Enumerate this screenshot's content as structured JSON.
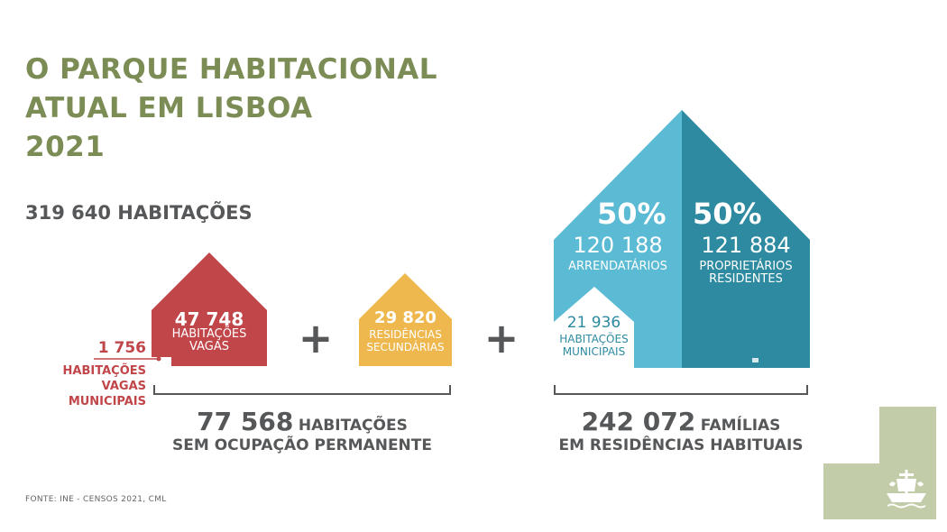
{
  "title": {
    "line1": "O PARQUE HABITACIONAL",
    "line2": "ATUAL EM LISBOA",
    "line3": "2021"
  },
  "total": "319 640 HABITAÇÕES",
  "vacant": {
    "value": "47 748",
    "label1": "HABITAÇÕES",
    "label2": "VAGAS",
    "color": "#c0464a"
  },
  "vacant_municipal": {
    "value": "1 756",
    "label1": "HABITAÇÕES",
    "label2": "VAGAS",
    "label3": "MUNICIPAIS"
  },
  "secondary": {
    "value": "29 820",
    "label1": "RESIDÊNCIAS",
    "label2": "SECUNDÁRIAS",
    "color": "#eeb84e"
  },
  "plus_sign": "+",
  "unoccupied_total": {
    "value": "77 568",
    "unit": "HABITAÇÕES",
    "line2": "SEM OCUPAÇÃO PERMANENTE"
  },
  "tenants": {
    "percent": "50%",
    "value": "120 188",
    "label": "ARRENDATÁRIOS",
    "color": "#5bbad4"
  },
  "owners": {
    "percent": "50%",
    "value": "121 884",
    "label1": "PROPRIETÁRIOS",
    "label2": "RESIDENTES",
    "color": "#2d8aa0"
  },
  "municipal": {
    "value": "21 936",
    "label1": "HABITAÇÕES",
    "label2": "MUNICIPAIS"
  },
  "families_total": {
    "value": "242 072",
    "unit": "FAMÍLIAS",
    "line2": "EM RESIDÊNCIAS HABITUAIS"
  },
  "source": "FONTE: INE - CENSOS 2021, CML",
  "logo": {
    "icon": "lisbon-coat-of-arms-icon",
    "background": "#c3cca9"
  }
}
